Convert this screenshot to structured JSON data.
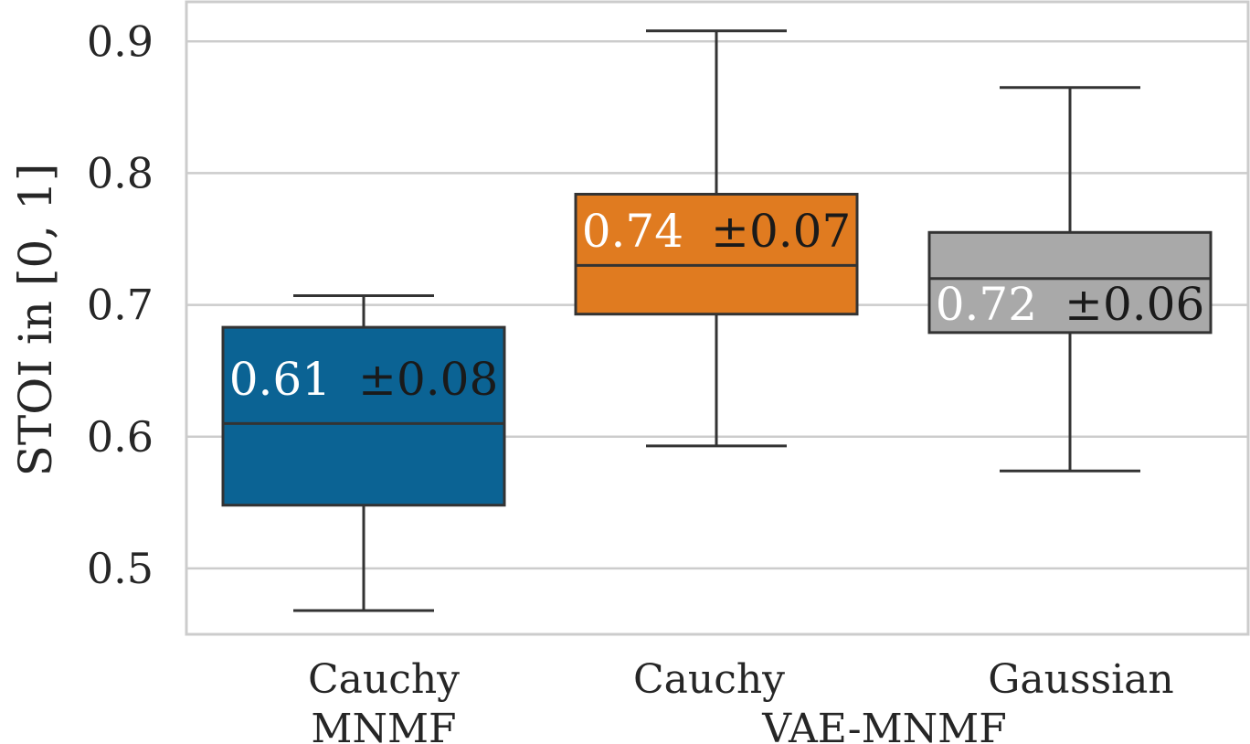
{
  "chart_data": {
    "type": "box",
    "ylabel": "STOI in [0, 1]",
    "ylim": [
      0.45,
      0.93
    ],
    "yticks": [
      "0.5",
      "0.6",
      "0.7",
      "0.8",
      "0.9"
    ],
    "ytick_values": [
      0.5,
      0.6,
      0.7,
      0.8,
      0.9
    ],
    "grid": true,
    "categories": [
      "Cauchy",
      "Cauchy",
      "Gaussian"
    ],
    "groups": [
      {
        "label": "MNMF",
        "members": [
          0
        ]
      },
      {
        "label": "VAE-MNMF",
        "members": [
          1,
          2
        ]
      }
    ],
    "boxes": [
      {
        "whisker_low": 0.468,
        "q1": 0.548,
        "median": 0.61,
        "q3": 0.683,
        "whisker_high": 0.707,
        "color": "#0b6394",
        "annotation": {
          "mean": "0.61",
          "std": "±0.08"
        }
      },
      {
        "whisker_low": 0.593,
        "q1": 0.693,
        "median": 0.73,
        "q3": 0.784,
        "whisker_high": 0.908,
        "color": "#e07b20",
        "annotation": {
          "mean": "0.74",
          "std": "±0.07"
        }
      },
      {
        "whisker_low": 0.574,
        "q1": 0.679,
        "median": 0.72,
        "q3": 0.755,
        "whisker_high": 0.865,
        "color": "#a9a9a9",
        "annotation": {
          "mean": "0.72",
          "std": "±0.06"
        }
      }
    ]
  }
}
